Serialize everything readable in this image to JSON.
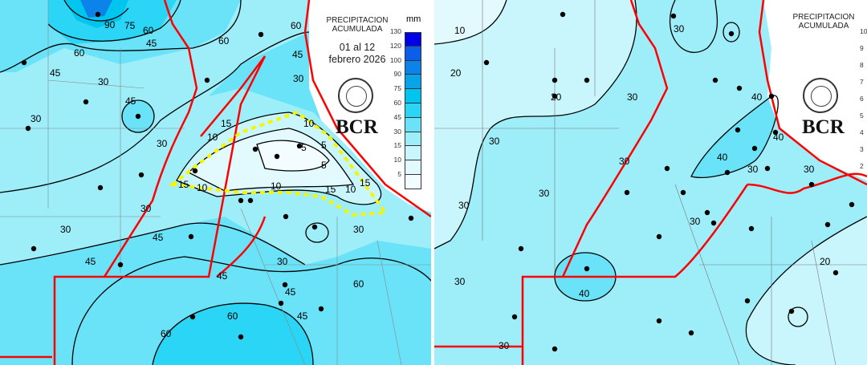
{
  "left_map": {
    "legend_title": "PRECIPITACION\nACUMULADA",
    "period": "01 al 12\nfebrero 2026",
    "logo_text": "BCR",
    "unit": "mm",
    "scale": [
      {
        "value": "130",
        "color": "#0000e6"
      },
      {
        "value": "120",
        "color": "#0a5ee8"
      },
      {
        "value": "100",
        "color": "#0b83e8"
      },
      {
        "value": "90",
        "color": "#08a3e8"
      },
      {
        "value": "75",
        "color": "#00c5ef"
      },
      {
        "value": "60",
        "color": "#2bd5f5"
      },
      {
        "value": "45",
        "color": "#6ae2f7"
      },
      {
        "value": "30",
        "color": "#9eeefa"
      },
      {
        "value": "15",
        "color": "#c8f6fc"
      },
      {
        "value": "10",
        "color": "#e2fafd"
      },
      {
        "value": "5",
        "color": "#f3fdff"
      }
    ],
    "contour_labels": [
      "90",
      "75",
      "60",
      "60",
      "60",
      "45",
      "60",
      "45",
      "45",
      "30",
      "30",
      "45",
      "30",
      "30",
      "15",
      "10",
      "5",
      "5",
      "5",
      "10",
      "15",
      "10",
      "10",
      "15",
      "10",
      "15",
      "30",
      "30",
      "30",
      "45",
      "45",
      "30",
      "45",
      "45",
      "60",
      "60",
      "60",
      "45"
    ]
  },
  "right_map": {
    "legend_title": "PRECIPITACION\nACUMULADA",
    "logo_text": "BCR",
    "scale_partial": [
      "10",
      "9",
      "8",
      "7",
      "6",
      "5",
      "4",
      "3",
      "2"
    ],
    "contour_labels": [
      "10",
      "20",
      "20",
      "30",
      "30",
      "30",
      "30",
      "30",
      "30",
      "40",
      "40",
      "40",
      "30",
      "30",
      "20",
      "30",
      "30",
      "40",
      "30"
    ]
  },
  "colors": {
    "border": "#ff0000",
    "highlight": "#f5f500",
    "contour": "#000000"
  }
}
